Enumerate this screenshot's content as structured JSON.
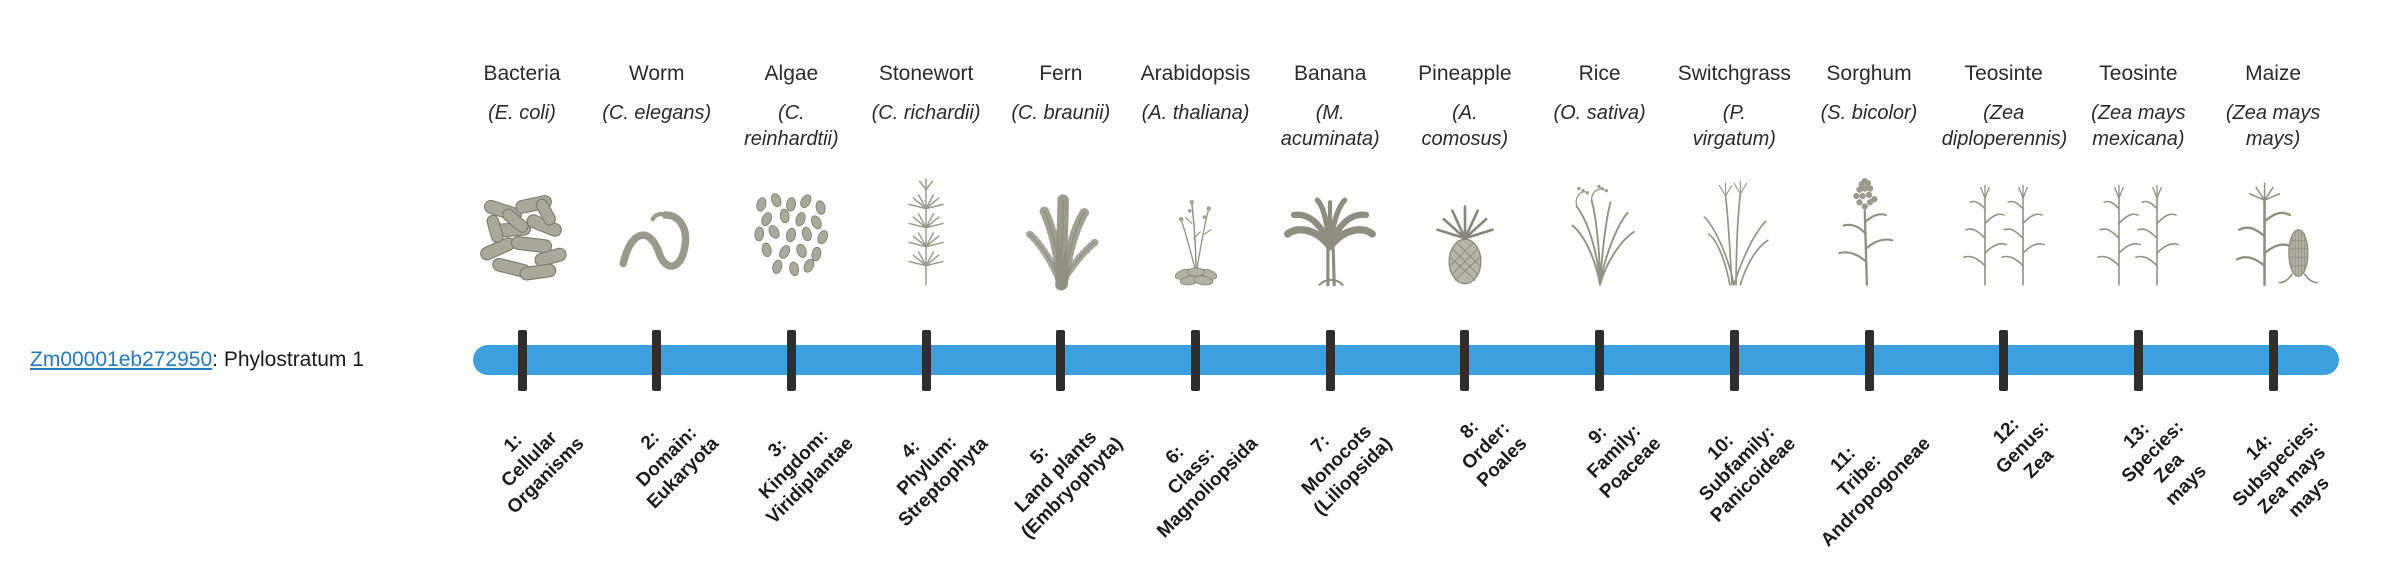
{
  "figure": {
    "gene": {
      "id": "Zm00001eb272950",
      "suffix": ": Phylostratum 1"
    },
    "timeline": {
      "bar_color": "#3da0dc",
      "tick_color": "#2e2e2e",
      "link_color": "#2878bd"
    }
  },
  "organisms": [
    {
      "name": "Bacteria",
      "sci": "(E. coli)",
      "icon": "bacteria-illustration",
      "glyph": "bacteria"
    },
    {
      "name": "Worm",
      "sci": "(C. elegans)",
      "icon": "worm-illustration",
      "glyph": "worm"
    },
    {
      "name": "Algae",
      "sci": "(C.\nreinhardtii)",
      "icon": "algae-illustration",
      "glyph": "algae"
    },
    {
      "name": "Stonewort",
      "sci": "(C. richardii)",
      "icon": "stonewort-illustration",
      "glyph": "stonewort"
    },
    {
      "name": "Fern",
      "sci": "(C. braunii)",
      "icon": "fern-illustration",
      "glyph": "fern"
    },
    {
      "name": "Arabidopsis",
      "sci": "(A. thaliana)",
      "icon": "arabidopsis-illustration",
      "glyph": "rosette"
    },
    {
      "name": "Banana",
      "sci": "(M.\nacuminata)",
      "icon": "banana-illustration",
      "glyph": "banana"
    },
    {
      "name": "Pineapple",
      "sci": "(A.\ncomosus)",
      "icon": "pineapple-illustration",
      "glyph": "pineapple"
    },
    {
      "name": "Rice",
      "sci": "(O. sativa)",
      "icon": "rice-illustration",
      "glyph": "grass"
    },
    {
      "name": "Switchgrass",
      "sci": "(P.\nvirgatum)",
      "icon": "switchgrass-illustration",
      "glyph": "switchgrass"
    },
    {
      "name": "Sorghum",
      "sci": "(S. bicolor)",
      "icon": "sorghum-illustration",
      "glyph": "sorghum"
    },
    {
      "name": "Teosinte",
      "sci": "(Zea\ndiploperennis)",
      "icon": "teosinte-illustration",
      "glyph": "teosinte"
    },
    {
      "name": "Teosinte",
      "sci": "(Zea mays\nmexicana)",
      "icon": "teosinte-illustration",
      "glyph": "teosinte"
    },
    {
      "name": "Maize",
      "sci": "(Zea mays\nmays)",
      "icon": "maize-illustration",
      "glyph": "maize"
    }
  ],
  "strata": [
    {
      "label": "1:\nCellular\nOrganisms"
    },
    {
      "label": "2:\nDomain:\nEukaryota"
    },
    {
      "label": "3:\nKingdom:\nViridiplantae"
    },
    {
      "label": "4:\nPhylum:\nStreptophyta"
    },
    {
      "label": "5:\nLand plants\n(Embryophyta)"
    },
    {
      "label": "6:\nClass:\nMagnoliopsida"
    },
    {
      "label": "7:\nMonocots\n(Liliopsida)"
    },
    {
      "label": "8:\nOrder:\nPoales"
    },
    {
      "label": "9:\nFamily:\nPoaceae"
    },
    {
      "label": "10:\nSubfamily:\nPanicoideae"
    },
    {
      "label": "11:\nTribe:\nAndropogoneae"
    },
    {
      "label": "12:\nGenus:\nZea"
    },
    {
      "label": "13:\nSpecies:\nZea\nmays"
    },
    {
      "label": "14:\nSubspecies:\nZea mays\nmays"
    }
  ]
}
